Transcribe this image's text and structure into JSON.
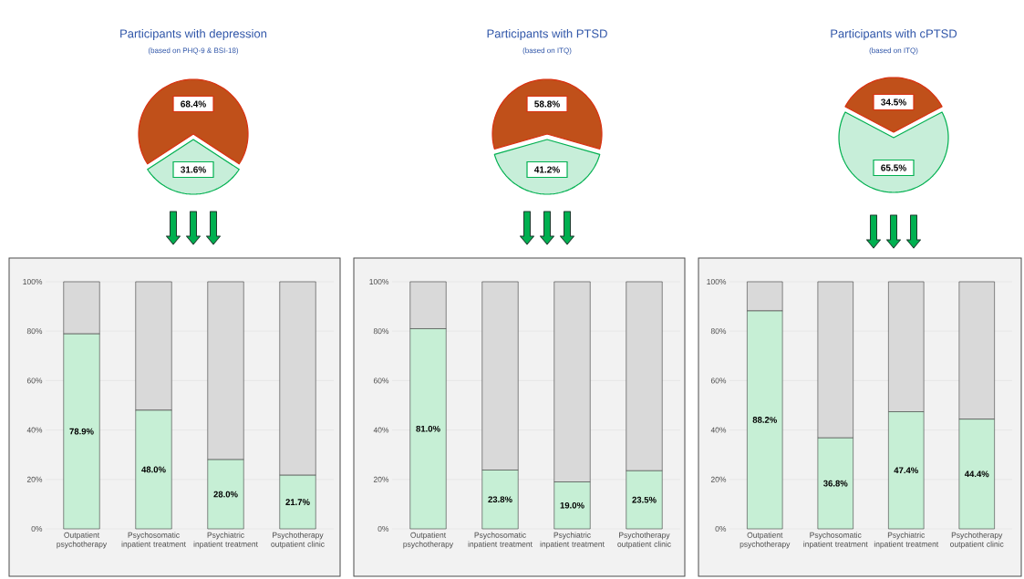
{
  "chart_data": [
    {
      "type": "pie",
      "title": "Participants with depression",
      "subtitle": "(based on PHQ-9 & BSI-18)",
      "categories": [
        null,
        null
      ],
      "values": [
        68.4,
        31.6
      ],
      "colors": [
        "#c0501a",
        "#00b050"
      ],
      "value_labels": [
        "68.4%",
        "31.6%"
      ]
    },
    {
      "type": "pie",
      "title": "Participants with PTSD",
      "subtitle": "(based on ITQ)",
      "categories": [
        null,
        null
      ],
      "values": [
        58.8,
        41.2
      ],
      "colors": [
        "#c0501a",
        "#00b050"
      ],
      "value_labels": [
        "58.8%",
        "41.2%"
      ]
    },
    {
      "type": "pie",
      "title": "Participants with cPTSD",
      "subtitle": "(based on ITQ)",
      "categories": [
        null,
        null
      ],
      "values": [
        34.5,
        65.5
      ],
      "colors": [
        "#c0501a",
        "#00b050"
      ],
      "value_labels": [
        "34.5%",
        "65.5%"
      ]
    },
    {
      "type": "bar",
      "stacked": true,
      "categories": [
        "Outpatient psychotherapy",
        "Psychosomatic inpatient treatment",
        "Psychiatric inpatient treatment",
        "Psychotherapy outpatient clinic"
      ],
      "ylim": [
        0,
        100
      ],
      "yticks": [
        {
          "value": 0,
          "label": "0%"
        },
        {
          "value": 20,
          "label": "20%"
        },
        {
          "value": 40,
          "label": "40%"
        },
        {
          "value": 60,
          "label": "60%"
        },
        {
          "value": 80,
          "label": "80%"
        },
        {
          "value": 100,
          "label": "100%"
        }
      ],
      "grid": "y",
      "series": [
        {
          "color": "#c6efd5",
          "values": [
            78.9,
            48.0,
            28.0,
            21.7
          ],
          "value_labels": [
            "78.9%",
            "48.0%",
            "28.0%",
            "21.7%"
          ]
        },
        {
          "color": "#d9d9d9",
          "values": [
            21.1,
            52.0,
            72.0,
            78.3
          ]
        }
      ]
    },
    {
      "type": "bar",
      "stacked": true,
      "categories": [
        "Outpatient psychotherapy",
        "Psychosomatic inpatient treatment",
        "Psychiatric inpatient treatment",
        "Psychotherapy outpatient clinic"
      ],
      "ylim": [
        0,
        100
      ],
      "yticks": [
        {
          "value": 0,
          "label": "0%"
        },
        {
          "value": 20,
          "label": "20%"
        },
        {
          "value": 40,
          "label": "40%"
        },
        {
          "value": 60,
          "label": "60%"
        },
        {
          "value": 80,
          "label": "80%"
        },
        {
          "value": 100,
          "label": "100%"
        }
      ],
      "grid": "y",
      "series": [
        {
          "color": "#c6efd5",
          "values": [
            81.0,
            23.8,
            19.0,
            23.5
          ],
          "value_labels": [
            "81.0%",
            "23.8%",
            "19.0%",
            "23.5%"
          ]
        },
        {
          "color": "#d9d9d9",
          "values": [
            19.0,
            76.2,
            81.0,
            76.5
          ]
        }
      ]
    },
    {
      "type": "bar",
      "stacked": true,
      "categories": [
        "Outpatient psychotherapy",
        "Psychosomatic inpatient treatment",
        "Psychiatric inpatient treatment",
        "Psychotherapy outpatient clinic"
      ],
      "ylim": [
        0,
        100
      ],
      "yticks": [
        {
          "value": 0,
          "label": "0%"
        },
        {
          "value": 20,
          "label": "20%"
        },
        {
          "value": 40,
          "label": "40%"
        },
        {
          "value": 60,
          "label": "60%"
        },
        {
          "value": 80,
          "label": "80%"
        },
        {
          "value": 100,
          "label": "100%"
        }
      ],
      "grid": "y",
      "series": [
        {
          "color": "#c6efd5",
          "values": [
            88.2,
            36.8,
            47.4,
            44.4
          ],
          "value_labels": [
            "88.2%",
            "36.8%",
            "47.4%",
            "44.4%"
          ]
        },
        {
          "color": "#d9d9d9",
          "values": [
            11.8,
            63.2,
            52.6,
            55.6
          ]
        }
      ]
    }
  ]
}
